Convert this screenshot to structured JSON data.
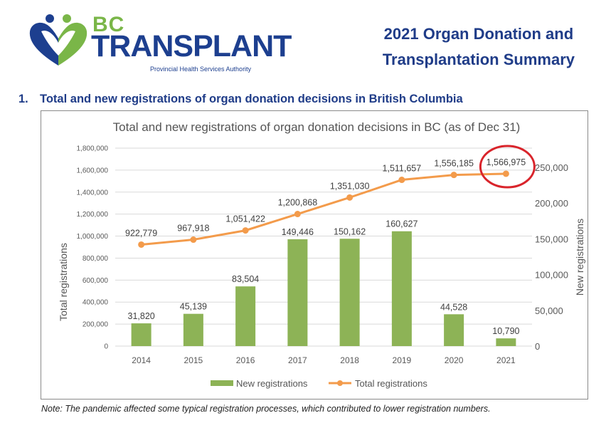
{
  "header": {
    "logo_bc": "BC",
    "logo_main": "TRANSPLANT",
    "logo_sub": "Provincial Health Services Authority",
    "summary_line1": "2021 Organ Donation and",
    "summary_line2": "Transplantation Summary"
  },
  "section": {
    "number": "1.",
    "title": "Total and new registrations of organ donation decisions in British Columbia"
  },
  "note": "Note: The pandemic affected some typical registration processes, which contributed to lower registration numbers.",
  "colors": {
    "brand_blue": "#1d3f8f",
    "brand_green": "#7ab648",
    "bar": "#8db356",
    "line": "#f39b4b",
    "highlight_circle": "#d9242b"
  },
  "chart_data": {
    "type": "bar",
    "title": "Total and new registrations of organ donation decisions in  BC (as of Dec 31)",
    "categories": [
      "2014",
      "2015",
      "2016",
      "2017",
      "2018",
      "2019",
      "2020",
      "2021"
    ],
    "series": [
      {
        "name": "New registrations",
        "type": "bar",
        "axis": "right",
        "values": [
          31820,
          45139,
          83504,
          149446,
          150162,
          160627,
          44528,
          10790
        ],
        "labels": [
          "31,820",
          "45,139",
          "83,504",
          "149,446",
          "150,162",
          "160,627",
          "44,528",
          "10,790"
        ]
      },
      {
        "name": "Total registrations",
        "type": "line",
        "axis": "left",
        "values": [
          922779,
          967918,
          1051422,
          1200868,
          1351030,
          1511657,
          1556185,
          1566975
        ],
        "labels": [
          "922,779",
          "967,918",
          "1,051,422",
          "1,200,868",
          "1,351,030",
          "1,511,657",
          "1,556,185",
          "1,566,975"
        ]
      }
    ],
    "ylabel": "Total registrations",
    "y2label": "New registrations",
    "ylim": [
      0,
      1800000
    ],
    "y2lim": [
      0,
      276923
    ],
    "yticks": [
      "0",
      "200,000",
      "400,000",
      "600,000",
      "800,000",
      "1,000,000",
      "1,200,000",
      "1,400,000",
      "1,600,000",
      "1,800,000"
    ],
    "y2ticks": [
      "0",
      "50,000",
      "100,000",
      "150,000",
      "200,000",
      "250,000"
    ],
    "legend_position": "bottom",
    "grid": true,
    "highlighted_point": "2021 Total registrations"
  }
}
